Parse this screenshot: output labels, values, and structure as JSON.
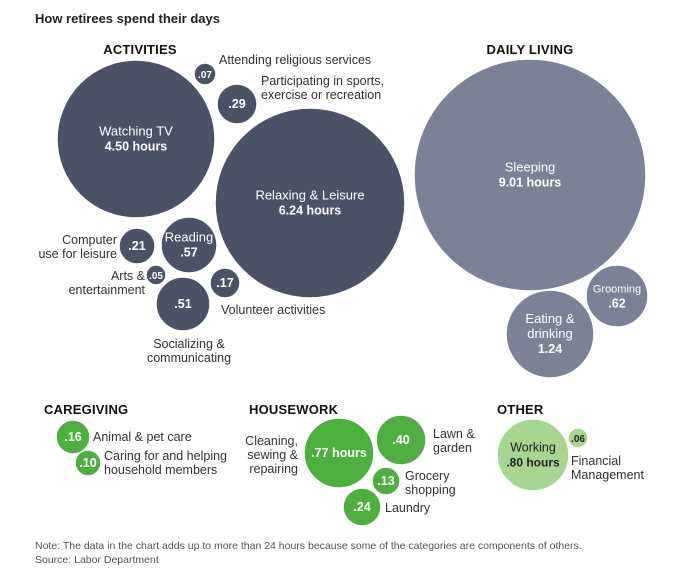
{
  "chart_data": {
    "type": "bubble",
    "title": "How retirees spend their days",
    "unit": "hours",
    "groups": [
      {
        "name": "ACTIVITIES",
        "color": "#4c5266",
        "items": [
          {
            "id": "watching-tv",
            "label": "Watching TV",
            "value_text": "4.50 hours",
            "value": 4.5
          },
          {
            "id": "relaxing-leisure",
            "label": "Relaxing & Leisure",
            "value_text": "6.24 hours",
            "value": 6.24
          },
          {
            "id": "religious",
            "label": "Attending religious services",
            "value_text": ".07",
            "value": 0.07
          },
          {
            "id": "sports",
            "label": "Participating in sports, exercise or recreation",
            "value_text": ".29",
            "value": 0.29
          },
          {
            "id": "reading",
            "label": "Reading",
            "value_text": ".57",
            "value": 0.57
          },
          {
            "id": "computer",
            "label": "Computer use for leisure",
            "value_text": ".21",
            "value": 0.21
          },
          {
            "id": "arts",
            "label": "Arts & entertainment",
            "value_text": ".05",
            "value": 0.05
          },
          {
            "id": "volunteer",
            "label": "Volunteer activities",
            "value_text": ".17",
            "value": 0.17
          },
          {
            "id": "socializing",
            "label": "Socializing & communicating",
            "value_text": ".51",
            "value": 0.51
          }
        ]
      },
      {
        "name": "DAILY LIVING",
        "color": "#7c8196",
        "items": [
          {
            "id": "sleeping",
            "label": "Sleeping",
            "value_text": "9.01 hours",
            "value": 9.01
          },
          {
            "id": "grooming",
            "label": "Grooming",
            "value_text": ".62",
            "value": 0.62
          },
          {
            "id": "eating",
            "label": "Eating & drinking",
            "value_text": "1.24",
            "value": 1.24
          }
        ]
      },
      {
        "name": "CAREGIVING",
        "color": "#4caf3e",
        "items": [
          {
            "id": "animal",
            "label": "Animal & pet care",
            "value_text": ".16",
            "value": 0.16
          },
          {
            "id": "caring",
            "label": "Caring for and helping household members",
            "value_text": ".10",
            "value": 0.1
          }
        ]
      },
      {
        "name": "HOUSEWORK",
        "color": "#4caf3e",
        "items": [
          {
            "id": "cleaning",
            "label": "Cleaning, sewing & repairing",
            "value_text": ".77 hours",
            "value": 0.77
          },
          {
            "id": "lawn",
            "label": "Lawn & garden",
            "value_text": ".40",
            "value": 0.4
          },
          {
            "id": "grocery",
            "label": "Grocery shopping",
            "value_text": ".13",
            "value": 0.13
          },
          {
            "id": "laundry",
            "label": "Laundry",
            "value_text": ".24",
            "value": 0.24
          }
        ]
      },
      {
        "name": "OTHER",
        "color": "#a6d68f",
        "items": [
          {
            "id": "working",
            "label": "Working",
            "value_text": ".80 hours",
            "value": 0.8
          },
          {
            "id": "financial",
            "label": "Financial Management",
            "value_text": ".06",
            "value": 0.06
          }
        ]
      }
    ],
    "note": "Note: The data in the chart adds up to more than 24 hours because some of the categories are components of others.",
    "source": "Source: Labor Department"
  }
}
